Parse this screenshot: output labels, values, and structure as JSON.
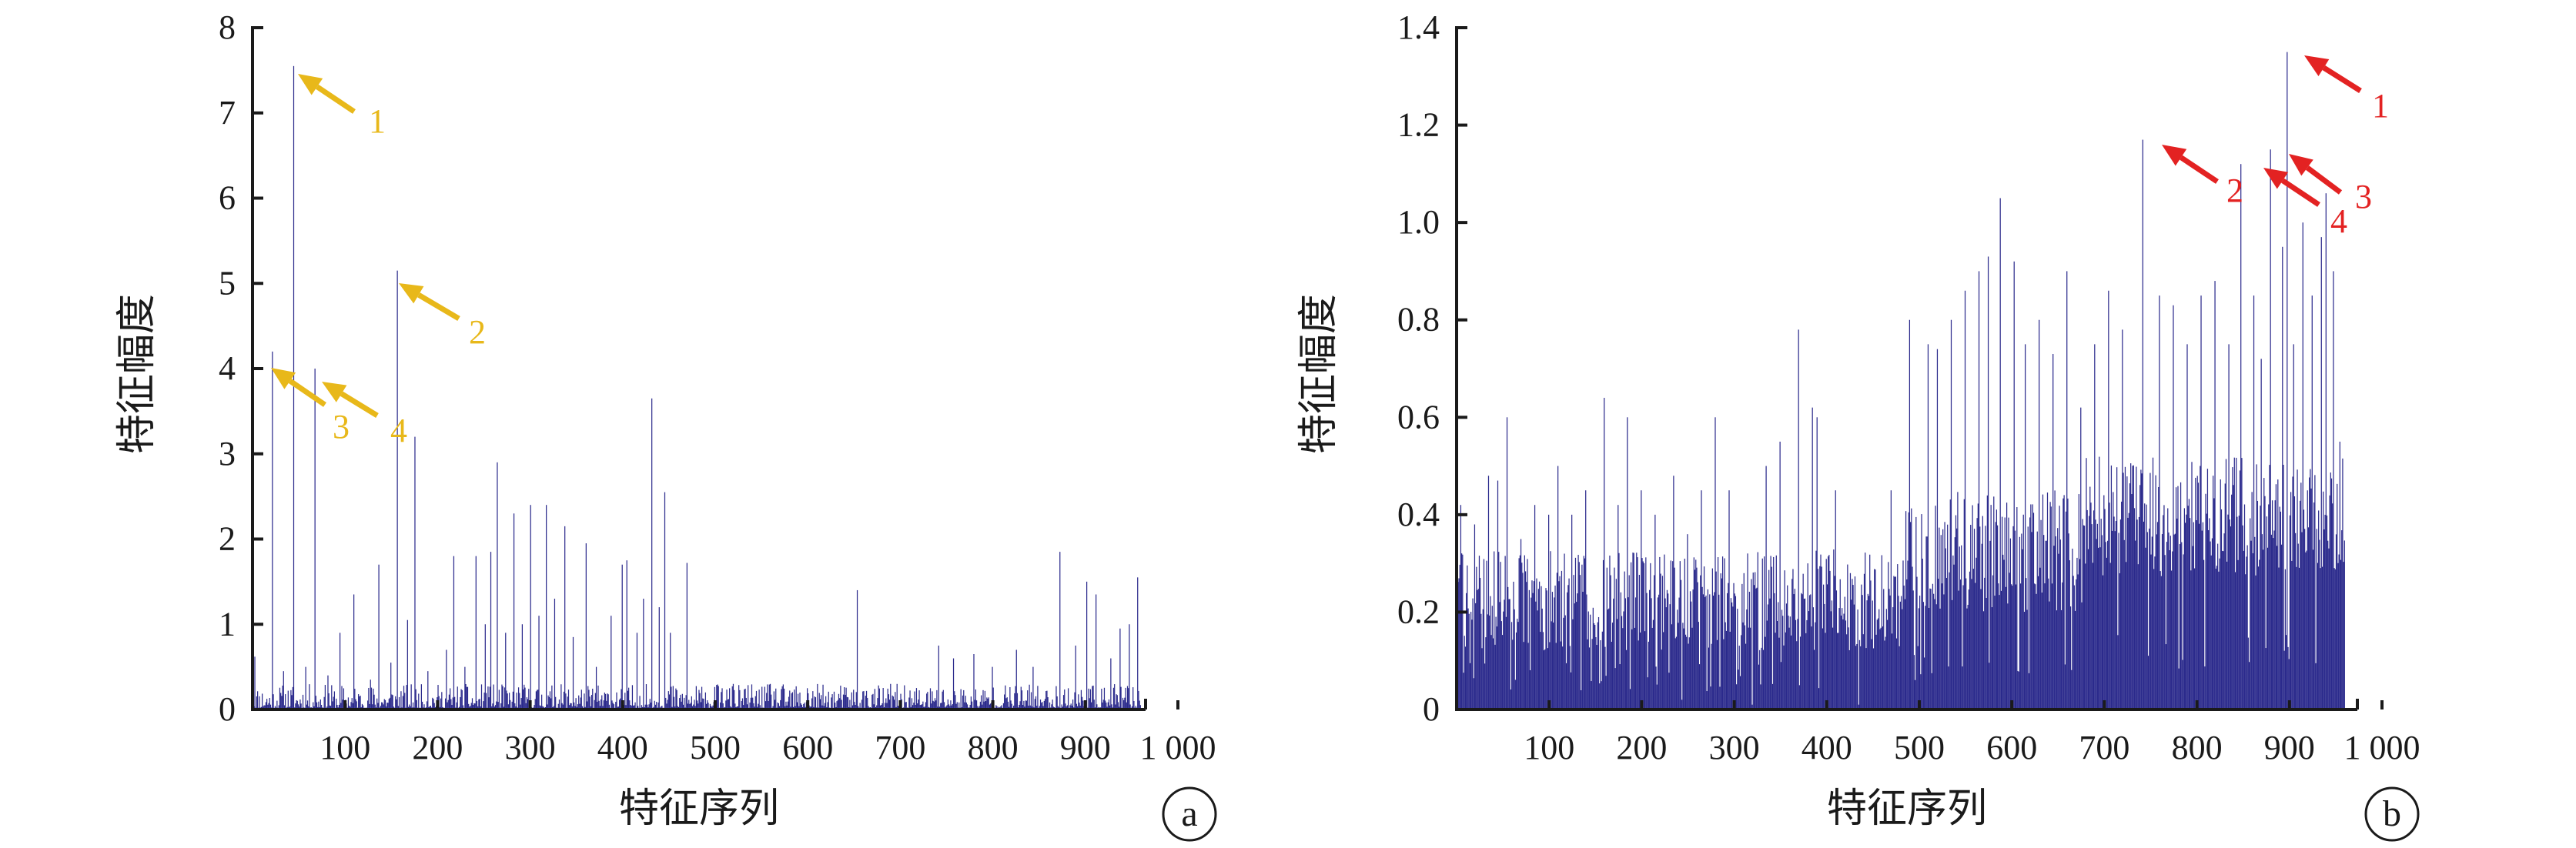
{
  "chart_data": [
    {
      "type": "bar",
      "panel_label": "a",
      "xlabel": "特征序列",
      "ylabel": "特征幅度",
      "xlim": [
        0,
        1000
      ],
      "ylim": [
        0,
        8
      ],
      "n_features": 960,
      "bar_color": "#2b2a8c",
      "x_ticks": [
        100,
        200,
        300,
        400,
        500,
        600,
        700,
        800,
        900,
        1000
      ],
      "x_tick_labels": [
        "100",
        "200",
        "300",
        "400",
        "500",
        "600",
        "700",
        "800",
        "900",
        "1 000"
      ],
      "y_ticks": [
        0,
        1,
        2,
        3,
        4,
        5,
        6,
        7,
        8
      ],
      "y_tick_labels": [
        "0",
        "1",
        "2",
        "3",
        "4",
        "5",
        "6",
        "7",
        "8"
      ],
      "baseline_range": [
        0.02,
        0.3
      ],
      "spikes": [
        [
          3,
          0.62
        ],
        [
          22,
          4.2
        ],
        [
          34,
          0.45
        ],
        [
          45,
          7.55
        ],
        [
          58,
          0.5
        ],
        [
          68,
          4.0
        ],
        [
          82,
          0.4
        ],
        [
          95,
          0.9
        ],
        [
          110,
          1.35
        ],
        [
          128,
          0.35
        ],
        [
          137,
          1.7
        ],
        [
          150,
          0.55
        ],
        [
          157,
          5.15
        ],
        [
          168,
          1.05
        ],
        [
          176,
          3.2
        ],
        [
          190,
          0.45
        ],
        [
          210,
          0.7
        ],
        [
          218,
          1.8
        ],
        [
          230,
          0.5
        ],
        [
          242,
          1.8
        ],
        [
          252,
          1.0
        ],
        [
          258,
          1.85
        ],
        [
          265,
          2.9
        ],
        [
          274,
          0.9
        ],
        [
          283,
          2.3
        ],
        [
          292,
          1.0
        ],
        [
          301,
          2.4
        ],
        [
          310,
          1.1
        ],
        [
          318,
          2.4
        ],
        [
          327,
          1.3
        ],
        [
          338,
          2.15
        ],
        [
          347,
          0.85
        ],
        [
          361,
          1.95
        ],
        [
          372,
          0.5
        ],
        [
          388,
          1.1
        ],
        [
          400,
          1.7
        ],
        [
          405,
          1.75
        ],
        [
          416,
          0.9
        ],
        [
          423,
          1.3
        ],
        [
          432,
          3.65
        ],
        [
          440,
          1.2
        ],
        [
          446,
          2.55
        ],
        [
          452,
          0.9
        ],
        [
          470,
          1.72
        ],
        [
          490,
          0.2
        ],
        [
          520,
          0.3
        ],
        [
          560,
          0.3
        ],
        [
          600,
          0.25
        ],
        [
          654,
          1.4
        ],
        [
          690,
          0.3
        ],
        [
          742,
          0.75
        ],
        [
          758,
          0.6
        ],
        [
          780,
          0.65
        ],
        [
          800,
          0.5
        ],
        [
          826,
          0.7
        ],
        [
          844,
          0.5
        ],
        [
          873,
          1.85
        ],
        [
          890,
          0.75
        ],
        [
          902,
          1.5
        ],
        [
          912,
          1.35
        ],
        [
          928,
          0.6
        ],
        [
          938,
          0.95
        ],
        [
          948,
          1.0
        ],
        [
          957,
          1.55
        ]
      ],
      "annotations": [
        {
          "label": "1",
          "color": "#e8b81a"
        },
        {
          "label": "2",
          "color": "#e8b81a"
        },
        {
          "label": "3",
          "color": "#e8b81a"
        },
        {
          "label": "4",
          "color": "#e8b81a"
        }
      ]
    },
    {
      "type": "bar",
      "panel_label": "b",
      "xlabel": "特征序列",
      "ylabel": "特征幅度",
      "xlim": [
        0,
        1000
      ],
      "ylim": [
        0,
        1.4
      ],
      "n_features": 960,
      "bar_color": "#2b2a8c",
      "x_ticks": [
        100,
        200,
        300,
        400,
        500,
        600,
        700,
        800,
        900,
        1000
      ],
      "x_tick_labels": [
        "100",
        "200",
        "300",
        "400",
        "500",
        "600",
        "700",
        "800",
        "900",
        "1 000"
      ],
      "y_ticks": [
        0,
        0.2,
        0.4,
        0.6,
        0.8,
        1.0,
        1.2,
        1.4
      ],
      "y_tick_labels": [
        "0",
        "0.2",
        "0.4",
        "0.6",
        "0.8",
        "1.0",
        "1.2",
        "1.4"
      ],
      "baseline_segments": [
        {
          "from": 0,
          "to": 480,
          "floor": 0.12,
          "top": 0.33
        },
        {
          "from": 480,
          "to": 680,
          "floor": 0.2,
          "top": 0.45
        },
        {
          "from": 680,
          "to": 960,
          "floor": 0.27,
          "top": 0.52
        }
      ],
      "spikes": [
        [
          5,
          0.42
        ],
        [
          20,
          0.38
        ],
        [
          35,
          0.48
        ],
        [
          45,
          0.47
        ],
        [
          55,
          0.6
        ],
        [
          70,
          0.35
        ],
        [
          85,
          0.42
        ],
        [
          100,
          0.4
        ],
        [
          110,
          0.5
        ],
        [
          125,
          0.4
        ],
        [
          140,
          0.45
        ],
        [
          160,
          0.64
        ],
        [
          175,
          0.42
        ],
        [
          185,
          0.6
        ],
        [
          200,
          0.45
        ],
        [
          215,
          0.4
        ],
        [
          235,
          0.48
        ],
        [
          250,
          0.36
        ],
        [
          265,
          0.45
        ],
        [
          280,
          0.6
        ],
        [
          295,
          0.45
        ],
        [
          320,
          0.73
        ],
        [
          335,
          0.5
        ],
        [
          350,
          0.55
        ],
        [
          370,
          0.78
        ],
        [
          385,
          0.62
        ],
        [
          390,
          0.6
        ],
        [
          410,
          0.45
        ],
        [
          435,
          0.57
        ],
        [
          470,
          0.45
        ],
        [
          490,
          0.8
        ],
        [
          510,
          0.75
        ],
        [
          520,
          0.74
        ],
        [
          535,
          0.8
        ],
        [
          550,
          0.86
        ],
        [
          565,
          0.9
        ],
        [
          575,
          0.93
        ],
        [
          588,
          1.05
        ],
        [
          603,
          0.92
        ],
        [
          615,
          0.75
        ],
        [
          630,
          0.8
        ],
        [
          645,
          0.73
        ],
        [
          660,
          0.9
        ],
        [
          675,
          0.62
        ],
        [
          690,
          0.75
        ],
        [
          705,
          0.86
        ],
        [
          720,
          0.78
        ],
        [
          742,
          1.17
        ],
        [
          760,
          0.85
        ],
        [
          775,
          0.83
        ],
        [
          790,
          0.75
        ],
        [
          805,
          0.85
        ],
        [
          820,
          0.88
        ],
        [
          835,
          0.75
        ],
        [
          848,
          1.12
        ],
        [
          862,
          0.85
        ],
        [
          870,
          0.72
        ],
        [
          880,
          1.15
        ],
        [
          893,
          0.95
        ],
        [
          898,
          1.35
        ],
        [
          905,
          0.75
        ],
        [
          915,
          1.0
        ],
        [
          925,
          0.85
        ],
        [
          935,
          0.97
        ],
        [
          940,
          1.06
        ],
        [
          948,
          0.9
        ],
        [
          955,
          0.55
        ]
      ],
      "annotations": [
        {
          "label": "1",
          "color": "#e32222"
        },
        {
          "label": "2",
          "color": "#e32222"
        },
        {
          "label": "3",
          "color": "#e32222"
        },
        {
          "label": "4",
          "color": "#e32222"
        }
      ]
    }
  ]
}
